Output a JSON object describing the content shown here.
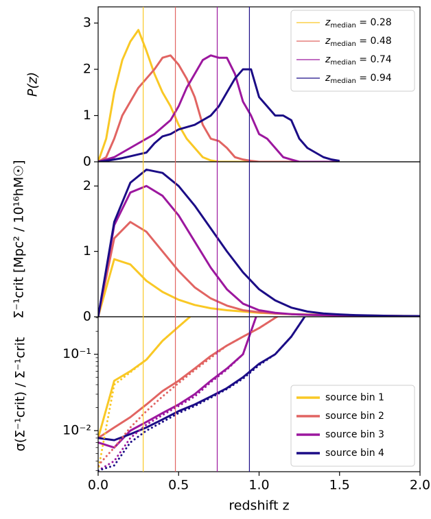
{
  "chart_data": [
    {
      "type": "line",
      "ylabel": "P(z)",
      "xlim": [
        0,
        2
      ],
      "ylim": [
        0,
        3.35
      ],
      "yticks": [
        0,
        1,
        2,
        3
      ],
      "legend": "upper right",
      "line_width": 3,
      "vlines": [
        0.28,
        0.48,
        0.74,
        0.94
      ],
      "x": [
        0,
        0.05,
        0.1,
        0.15,
        0.2,
        0.25,
        0.3,
        0.35,
        0.4,
        0.45,
        0.5,
        0.55,
        0.6,
        0.65,
        0.7,
        0.75,
        0.8,
        0.85,
        0.9,
        0.95,
        1.0,
        1.05,
        1.1,
        1.15,
        1.2,
        1.25,
        1.3,
        1.35,
        1.4,
        1.45,
        1.5
      ],
      "series": [
        {
          "name": "zmedian = 0.28",
          "color": "#f9c825",
          "values": [
            0,
            0.5,
            1.5,
            2.2,
            2.6,
            2.85,
            2.4,
            1.9,
            1.5,
            1.2,
            0.8,
            0.5,
            0.3,
            0.1,
            0.03,
            0,
            0,
            0,
            0,
            0,
            0,
            0,
            0,
            0,
            0,
            0,
            0,
            0,
            0,
            0,
            0
          ]
        },
        {
          "name": "zmedian = 0.48",
          "color": "#e16462",
          "values": [
            0,
            0.1,
            0.5,
            1.0,
            1.3,
            1.6,
            1.8,
            2.0,
            2.25,
            2.3,
            2.1,
            1.8,
            1.4,
            0.8,
            0.5,
            0.45,
            0.3,
            0.1,
            0.05,
            0.02,
            0,
            0,
            0,
            0,
            0,
            0,
            0,
            0,
            0,
            0,
            0
          ]
        },
        {
          "name": "zmedian = 0.74",
          "color": "#9c179e",
          "values": [
            0,
            0.05,
            0.1,
            0.2,
            0.3,
            0.4,
            0.5,
            0.6,
            0.75,
            0.9,
            1.2,
            1.6,
            1.9,
            2.2,
            2.3,
            2.25,
            2.25,
            1.9,
            1.3,
            1.0,
            0.6,
            0.5,
            0.3,
            0.1,
            0.05,
            0,
            0,
            0,
            0,
            0,
            0
          ]
        },
        {
          "name": "zmedian = 0.94",
          "color": "#1b0c86",
          "values": [
            0,
            0.02,
            0.05,
            0.08,
            0.12,
            0.16,
            0.2,
            0.4,
            0.55,
            0.6,
            0.7,
            0.75,
            0.8,
            0.9,
            1.0,
            1.2,
            1.5,
            1.8,
            2.0,
            2.0,
            1.4,
            1.2,
            1.0,
            1.0,
            0.9,
            0.5,
            0.3,
            0.2,
            0.1,
            0.05,
            0.02
          ]
        }
      ]
    },
    {
      "type": "line",
      "ylabel": "Σ⁻¹crit [Mpc² / 10¹⁶hM☉]",
      "xlim": [
        0,
        2
      ],
      "ylim": [
        0,
        2.37
      ],
      "yticks": [
        0,
        1,
        2
      ],
      "line_width": 3,
      "x": [
        0,
        0.1,
        0.2,
        0.3,
        0.4,
        0.5,
        0.6,
        0.7,
        0.8,
        0.9,
        1.0,
        1.1,
        1.2,
        1.3,
        1.4,
        1.5,
        1.6,
        1.7,
        1.8,
        1.9,
        2.0
      ],
      "series": [
        {
          "color": "#f9c825",
          "values": [
            0,
            0.88,
            0.8,
            0.55,
            0.38,
            0.26,
            0.18,
            0.13,
            0.1,
            0.08,
            0.06,
            0.05,
            0.04,
            0.035,
            0.03,
            0.025,
            0.02,
            0.018,
            0.015,
            0.012,
            0.01
          ]
        },
        {
          "color": "#e16462",
          "values": [
            0,
            1.2,
            1.45,
            1.3,
            1.0,
            0.7,
            0.45,
            0.28,
            0.17,
            0.1,
            0.07,
            0.05,
            0.04,
            0.03,
            0.025,
            0.02,
            0.017,
            0.014,
            0.012,
            0.01,
            0.008
          ]
        },
        {
          "color": "#9c179e",
          "values": [
            0,
            1.4,
            1.9,
            2.0,
            1.85,
            1.55,
            1.15,
            0.75,
            0.42,
            0.2,
            0.1,
            0.06,
            0.04,
            0.03,
            0.025,
            0.02,
            0.017,
            0.014,
            0.012,
            0.01,
            0.008
          ]
        },
        {
          "color": "#1b0c86",
          "values": [
            0,
            1.45,
            2.05,
            2.25,
            2.2,
            2.0,
            1.7,
            1.35,
            1.0,
            0.68,
            0.42,
            0.25,
            0.14,
            0.08,
            0.05,
            0.035,
            0.025,
            0.02,
            0.015,
            0.012,
            0.01
          ]
        }
      ]
    },
    {
      "type": "line",
      "ylabel": "σ(Σ⁻¹crit) / Σ⁻¹crit",
      "xlabel": "redshift z",
      "log_y": true,
      "legend": "lower right",
      "line_width": 3,
      "xlim": [
        0,
        2
      ],
      "ylim": [
        0.0029,
        0.31
      ],
      "xticks": [
        {
          "value": 0,
          "label": "0.0"
        },
        {
          "value": 0.5,
          "label": "0.5"
        },
        {
          "value": 1,
          "label": "1.0"
        },
        {
          "value": 1.5,
          "label": "1.5"
        },
        {
          "value": 2,
          "label": "2.0"
        }
      ],
      "yticks": [
        {
          "value": 0.01,
          "label": "10⁻²"
        },
        {
          "value": 0.1,
          "label": "10⁻¹"
        }
      ],
      "x": [
        0,
        0.1,
        0.2,
        0.3,
        0.4,
        0.5,
        0.6,
        0.7,
        0.8,
        0.9,
        1.0,
        1.1,
        1.2,
        1.3
      ],
      "series": [
        {
          "name": "source bin 1",
          "color": "#f9c825",
          "values": [
            0.008,
            0.045,
            0.06,
            0.085,
            0.15,
            0.23,
            0.35,
            null,
            null,
            null,
            null,
            null,
            null,
            null
          ]
        },
        {
          "name": "source bin 2",
          "color": "#e16462",
          "values": [
            0.008,
            0.011,
            0.015,
            0.022,
            0.033,
            0.045,
            0.065,
            0.095,
            0.13,
            0.17,
            0.22,
            0.3,
            0.4,
            null
          ]
        },
        {
          "name": "source bin 3",
          "color": "#9c179e",
          "values": [
            0.007,
            0.006,
            0.01,
            0.013,
            0.017,
            0.022,
            0.03,
            0.045,
            0.065,
            0.1,
            0.4,
            null,
            null,
            null
          ]
        },
        {
          "name": "source bin 4",
          "color": "#1b0c86",
          "values": [
            0.008,
            0.0075,
            0.009,
            0.011,
            0.014,
            0.018,
            0.022,
            0.028,
            0.036,
            0.05,
            0.075,
            0.1,
            0.17,
            0.35
          ]
        },
        {
          "color": "#f9c825",
          "dotted": true,
          "values": [
            0.003,
            0.04,
            0.058,
            0.085,
            0.15,
            0.23,
            0.35,
            null,
            null,
            null,
            null,
            null,
            null,
            null
          ]
        },
        {
          "color": "#e16462",
          "dotted": true,
          "values": [
            0.0035,
            0.006,
            0.011,
            0.018,
            0.028,
            0.042,
            0.062,
            0.09,
            0.13,
            0.17,
            0.22,
            0.3,
            0.4,
            null
          ]
        },
        {
          "color": "#9c179e",
          "dotted": true,
          "values": [
            0.003,
            0.004,
            0.008,
            0.012,
            0.016,
            0.021,
            0.028,
            0.043,
            0.063,
            0.1,
            0.4,
            null,
            null,
            null
          ]
        },
        {
          "color": "#1b0c86",
          "dotted": true,
          "values": [
            0.003,
            0.0035,
            0.007,
            0.01,
            0.013,
            0.017,
            0.021,
            0.027,
            0.035,
            0.048,
            0.072,
            0.1,
            0.17,
            0.35
          ]
        }
      ]
    }
  ]
}
